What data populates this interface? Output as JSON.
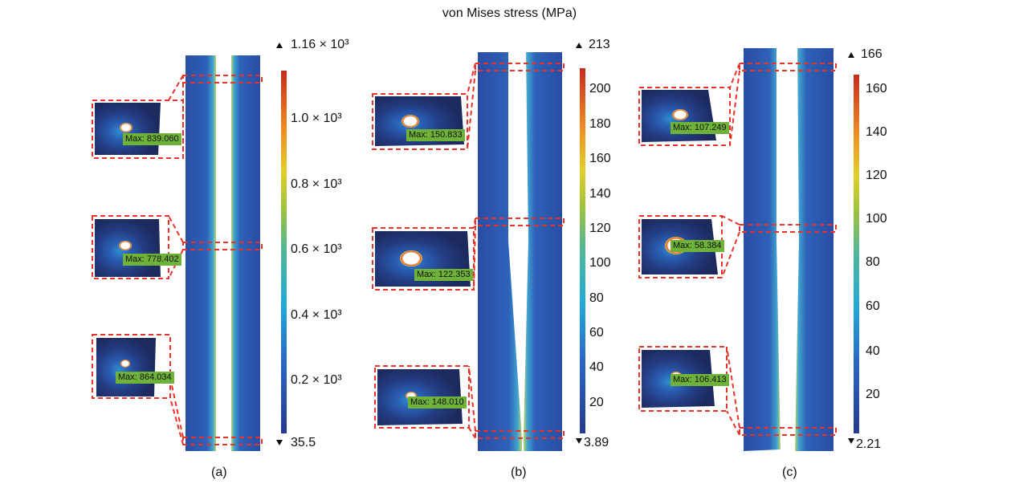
{
  "title": "von Mises stress (MPa)",
  "panels": [
    {
      "label": "(a)",
      "colorbar": {
        "max": "1.16 × 10³",
        "min": "35.5",
        "ticks": [
          "1.0 × 10³",
          "0.8 × 10³",
          "0.6 × 10³",
          "0.4 × 10³",
          "0.2 × 10³"
        ]
      },
      "insets": [
        "Max: 839.060",
        "Max: 778.402",
        "Max: 864.034"
      ]
    },
    {
      "label": "(b)",
      "colorbar": {
        "max": "213",
        "min": "3.89",
        "ticks": [
          "200",
          "180",
          "160",
          "140",
          "120",
          "100",
          "80",
          "60",
          "40",
          "20"
        ]
      },
      "insets": [
        "Max: 150.833",
        "Max: 122.353",
        "Max: 148.010"
      ]
    },
    {
      "label": "(c)",
      "colorbar": {
        "max": "166",
        "min": "2.21",
        "ticks": [
          "160",
          "140",
          "120",
          "100",
          "80",
          "60",
          "40",
          "20"
        ]
      },
      "insets": [
        "Max: 107.249",
        "Max: 58.384",
        "Max: 106.413"
      ]
    }
  ],
  "colors": {
    "annotation": "#e8322a",
    "low": "#24408f",
    "high": "#c62a1e",
    "label_bg": "#6fb23a"
  }
}
